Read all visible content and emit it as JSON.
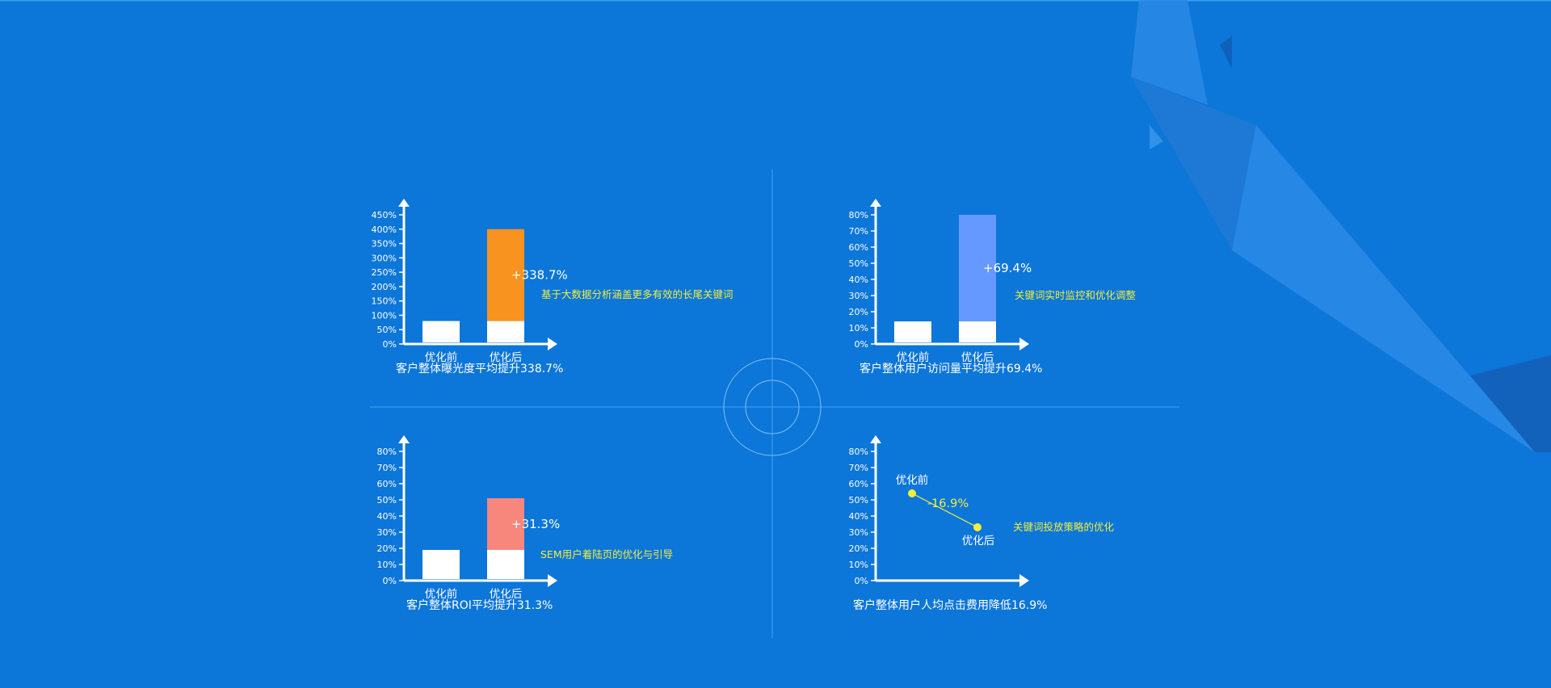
{
  "colors": {
    "background": "#0c76d9",
    "axis": "#ffffff",
    "base_bar": "#ffffff",
    "note": "#f3ef3c",
    "divider": "#43a4f0"
  },
  "chart_data": [
    {
      "type": "bar",
      "categories": [
        "优化前",
        "优化后"
      ],
      "yticks": [
        "0%",
        "50%",
        "100%",
        "150%",
        "200%",
        "250%",
        "300%",
        "350%",
        "400%",
        "450%"
      ],
      "ylim": [
        0,
        450
      ],
      "series": [
        {
          "values": [
            80,
            80
          ]
        },
        {
          "values": [
            0,
            320
          ]
        }
      ],
      "increase_color": "#f7931e",
      "increase_label": "+338.7%",
      "annotation": "基于大数据分析涵盖更多有效的长尾关键词",
      "caption": "客户整体曝光度平均提升338.7%"
    },
    {
      "type": "bar",
      "categories": [
        "优化前",
        "优化后"
      ],
      "yticks": [
        "0%",
        "10%",
        "20%",
        "30%",
        "40%",
        "50%",
        "60%",
        "70%",
        "80%"
      ],
      "ylim": [
        0,
        80
      ],
      "series": [
        {
          "values": [
            14,
            14
          ]
        },
        {
          "values": [
            0,
            66
          ]
        }
      ],
      "increase_color": "#6699ff",
      "increase_label": "+69.4%",
      "annotation": "关键词实时监控和优化调整",
      "caption": "客户整体用户访问量平均提升69.4%"
    },
    {
      "type": "bar",
      "categories": [
        "优化前",
        "优化后"
      ],
      "yticks": [
        "0%",
        "10%",
        "20%",
        "30%",
        "40%",
        "50%",
        "60%",
        "70%",
        "80%"
      ],
      "ylim": [
        0,
        80
      ],
      "series": [
        {
          "values": [
            19,
            19
          ]
        },
        {
          "values": [
            0,
            32
          ]
        }
      ],
      "increase_color": "#f7867c",
      "increase_label": "+31.3%",
      "annotation": "SEM用户着陆页的优化与引导",
      "caption": "客户整体ROI平均提升31.3%"
    },
    {
      "type": "line",
      "yticks": [
        "0%",
        "10%",
        "20%",
        "30%",
        "40%",
        "50%",
        "60%",
        "70%",
        "80%"
      ],
      "ylim": [
        0,
        80
      ],
      "points": [
        {
          "label": "优化前",
          "y": 54
        },
        {
          "label": "优化后",
          "y": 33
        }
      ],
      "line_label": "-16.9%",
      "annotation": "关键词投放策略的优化",
      "caption": "客户整体用户人均点击费用降低16.9%"
    }
  ]
}
